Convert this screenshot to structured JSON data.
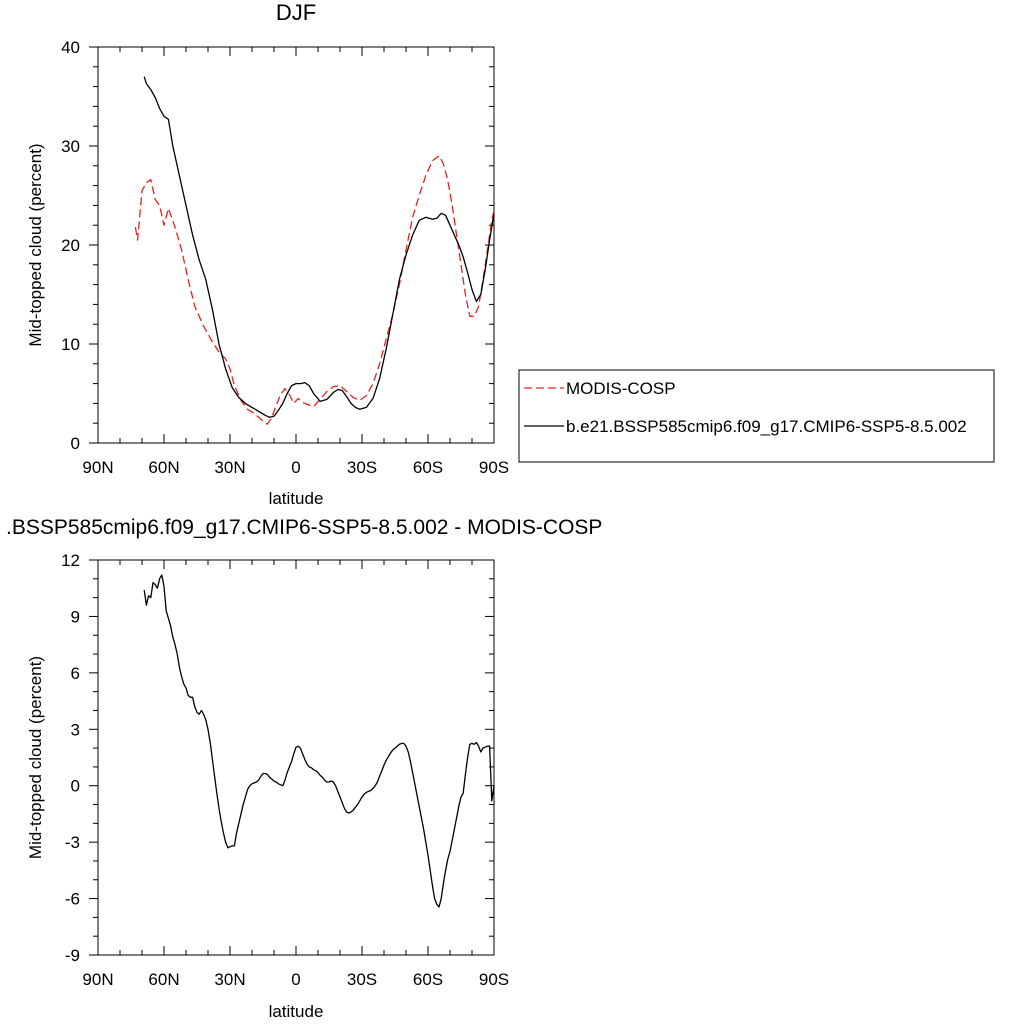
{
  "chart_data": [
    {
      "type": "line",
      "title": "DJF",
      "xlabel": "latitude",
      "ylabel": "Mid-topped cloud (percent)",
      "xlim": [
        -90,
        90
      ],
      "ylim": [
        0,
        40
      ],
      "xticks": [
        -90,
        -60,
        -30,
        0,
        30,
        60,
        90
      ],
      "xticklabels": [
        "90N",
        "60N",
        "30N",
        "0",
        "30S",
        "60S",
        "90S"
      ],
      "yticks": [
        0,
        10,
        20,
        30,
        40
      ],
      "yticklabels": [
        "0",
        "10",
        "20",
        "30",
        "40"
      ],
      "legend": {
        "placement": "right",
        "entries": [
          {
            "label": "MODIS-COSP",
            "color": "#e8211d",
            "dash": "dashed"
          },
          {
            "label": "b.e21.BSSP585cmip6.f09_g17.CMIP6-SSP5-8.5.002",
            "color": "#000000",
            "dash": "solid"
          }
        ]
      },
      "series": [
        {
          "name": "MODIS-COSP",
          "color": "#e8211d",
          "dash": "dashed",
          "x": [
            -73,
            -72,
            -71,
            -70,
            -68,
            -66,
            -64,
            -62,
            -60,
            -58,
            -55,
            -52,
            -49,
            -46,
            -42,
            -38,
            -35,
            -32,
            -30,
            -28,
            -25,
            -22,
            -19,
            -16,
            -13,
            -11,
            -9,
            -7,
            -5,
            -3,
            -1,
            1,
            3,
            5,
            8,
            11,
            14,
            17,
            20,
            23,
            26,
            29,
            32,
            35,
            38,
            41,
            44,
            47,
            50,
            53,
            56,
            59,
            62,
            65,
            67,
            69,
            71,
            73,
            75,
            77,
            79,
            81,
            83,
            85,
            87,
            89,
            90
          ],
          "values": [
            21.8,
            20.5,
            23.0,
            25.5,
            26.3,
            26.6,
            24.6,
            24.0,
            22.0,
            23.7,
            21.8,
            19.5,
            16.5,
            13.8,
            11.8,
            10.2,
            9.2,
            8.5,
            7.5,
            5.8,
            4.3,
            3.4,
            3.0,
            2.4,
            1.9,
            2.6,
            3.8,
            4.9,
            5.5,
            4.9,
            4.0,
            4.5,
            4.1,
            3.9,
            3.7,
            4.4,
            5.2,
            5.7,
            5.8,
            5.2,
            4.6,
            4.3,
            4.8,
            6.0,
            8.0,
            10.5,
            13.0,
            16.0,
            19.5,
            22.8,
            25.0,
            27.0,
            28.5,
            29.0,
            28.2,
            26.5,
            24.0,
            21.0,
            18.0,
            15.0,
            12.8,
            12.8,
            13.8,
            16.5,
            19.5,
            22.5,
            23.5
          ]
        },
        {
          "name": "b.e21.BSSP585cmip6.f09_g17.CMIP6-SSP5-8.5.002",
          "color": "#000000",
          "dash": "solid",
          "x": [
            -69,
            -68,
            -66,
            -64,
            -62,
            -60,
            -58,
            -56,
            -53,
            -50,
            -47,
            -44,
            -41,
            -38,
            -35,
            -32,
            -29,
            -26,
            -23,
            -20,
            -17,
            -14,
            -12,
            -10,
            -8,
            -6,
            -4,
            -2,
            0,
            2,
            4,
            6,
            8,
            11,
            14,
            17,
            19,
            21,
            23,
            25,
            27,
            29,
            32,
            35,
            38,
            41,
            44,
            47,
            50,
            53,
            56,
            59,
            62,
            64,
            66,
            68,
            70,
            72,
            74,
            76,
            78,
            80,
            82,
            84,
            86,
            88,
            90
          ],
          "values": [
            37.0,
            36.3,
            35.7,
            34.9,
            33.8,
            33.0,
            32.7,
            30.0,
            27.0,
            24.0,
            21.0,
            18.5,
            16.5,
            13.5,
            10.0,
            7.5,
            5.6,
            4.6,
            4.0,
            3.6,
            3.2,
            2.8,
            2.6,
            2.7,
            3.3,
            4.0,
            5.0,
            5.8,
            6.0,
            6.0,
            6.1,
            5.8,
            5.0,
            4.2,
            4.4,
            5.1,
            5.4,
            5.3,
            4.7,
            4.0,
            3.6,
            3.4,
            3.6,
            4.5,
            6.5,
            9.5,
            13.0,
            16.5,
            19.0,
            21.0,
            22.5,
            22.8,
            22.6,
            22.7,
            23.2,
            23.0,
            22.0,
            21.0,
            20.0,
            18.8,
            17.2,
            15.5,
            14.3,
            15.0,
            17.5,
            20.5,
            23.2
          ]
        }
      ]
    },
    {
      "type": "line",
      "title": ".BSSP585cmip6.f09_g17.CMIP6-SSP5-8.5.002 - MODIS-COSP",
      "xlabel": "latitude",
      "ylabel": "Mid-topped cloud (percent)",
      "xlim": [
        -90,
        90
      ],
      "ylim": [
        -9,
        12
      ],
      "xticks": [
        -90,
        -60,
        -30,
        0,
        30,
        60,
        90
      ],
      "xticklabels": [
        "90N",
        "60N",
        "30N",
        "0",
        "30S",
        "60S",
        "90S"
      ],
      "yticks": [
        -9,
        -6,
        -3,
        0,
        3,
        6,
        9,
        12
      ],
      "yticklabels": [
        "-9",
        "-6",
        "-3",
        "0",
        "3",
        "6",
        "9",
        "12"
      ],
      "series": [
        {
          "name": "",
          "color": "#000000",
          "dash": "solid",
          "x": [
            -69,
            -68,
            -67,
            -66,
            -65,
            -64,
            -63,
            -62,
            -61,
            -60,
            -59,
            -58,
            -57,
            -56,
            -55,
            -54,
            -53,
            -52,
            -51,
            -50,
            -49,
            -48,
            -47,
            -46,
            -45,
            -44,
            -43,
            -42,
            -41,
            -40,
            -39,
            -38,
            -37,
            -36,
            -35,
            -34,
            -33,
            -32,
            -31,
            -30,
            -29,
            -28,
            -27,
            -26,
            -25,
            -24,
            -23,
            -22,
            -21,
            -20,
            -19,
            -18,
            -17,
            -16,
            -15,
            -14,
            -13,
            -12,
            -11,
            -10,
            -9,
            -8,
            -7,
            -6,
            -5,
            -4,
            -3,
            -2,
            -1,
            0,
            1,
            2,
            3,
            4,
            5,
            6,
            7,
            8,
            9,
            10,
            11,
            12,
            13,
            14,
            15,
            16,
            17,
            18,
            19,
            20,
            21,
            22,
            23,
            24,
            25,
            26,
            27,
            28,
            29,
            30,
            31,
            32,
            33,
            34,
            35,
            36,
            37,
            38,
            39,
            40,
            41,
            42,
            43,
            44,
            45,
            46,
            47,
            48,
            49,
            50,
            51,
            52,
            53,
            54,
            55,
            56,
            57,
            58,
            59,
            60,
            61,
            62,
            63,
            64,
            65,
            66,
            67,
            68,
            69,
            70,
            71,
            72,
            73,
            74,
            75,
            76,
            77,
            78,
            79,
            80,
            81,
            82,
            83,
            84,
            85,
            86,
            87,
            88,
            89,
            90
          ],
          "values": [
            10.4,
            9.6,
            10.1,
            10.0,
            10.8,
            10.7,
            10.5,
            11.0,
            11.2,
            10.6,
            9.3,
            8.9,
            8.5,
            7.9,
            7.5,
            7.0,
            6.3,
            5.8,
            5.4,
            5.2,
            4.8,
            4.7,
            4.7,
            4.2,
            3.9,
            3.8,
            4.0,
            3.8,
            3.5,
            3.0,
            2.3,
            1.4,
            0.5,
            -0.4,
            -1.2,
            -1.9,
            -2.5,
            -3.0,
            -3.3,
            -3.25,
            -3.2,
            -3.2,
            -2.5,
            -2.0,
            -1.5,
            -1.0,
            -0.6,
            -0.2,
            0.0,
            0.1,
            0.15,
            0.2,
            0.3,
            0.5,
            0.65,
            0.65,
            0.6,
            0.45,
            0.35,
            0.25,
            0.2,
            0.1,
            0.05,
            0.0,
            0.3,
            0.7,
            1.0,
            1.3,
            1.7,
            2.05,
            2.1,
            2.0,
            1.7,
            1.4,
            1.15,
            1.0,
            0.95,
            0.85,
            0.8,
            0.7,
            0.55,
            0.45,
            0.3,
            0.2,
            0.2,
            0.25,
            0.2,
            0.0,
            -0.3,
            -0.6,
            -0.9,
            -1.2,
            -1.4,
            -1.45,
            -1.4,
            -1.3,
            -1.15,
            -1.0,
            -0.8,
            -0.6,
            -0.45,
            -0.35,
            -0.3,
            -0.25,
            -0.15,
            0.0,
            0.2,
            0.5,
            0.8,
            1.1,
            1.35,
            1.55,
            1.75,
            1.9,
            2.0,
            2.1,
            2.2,
            2.25,
            2.25,
            2.1,
            1.8,
            1.3,
            0.7,
            0.1,
            -0.5,
            -1.1,
            -1.7,
            -2.3,
            -3.0,
            -3.7,
            -4.5,
            -5.3,
            -6.0,
            -6.3,
            -6.45,
            -6.0,
            -5.2,
            -4.5,
            -3.9,
            -3.5,
            -2.9,
            -2.3,
            -1.7,
            -1.1,
            -0.6,
            -0.4,
            0.6,
            1.5,
            2.2,
            2.25,
            2.2,
            2.3,
            2.1,
            1.8,
            2.0,
            2.05,
            2.1,
            2.1,
            -0.8,
            0.0
          ]
        }
      ]
    }
  ]
}
